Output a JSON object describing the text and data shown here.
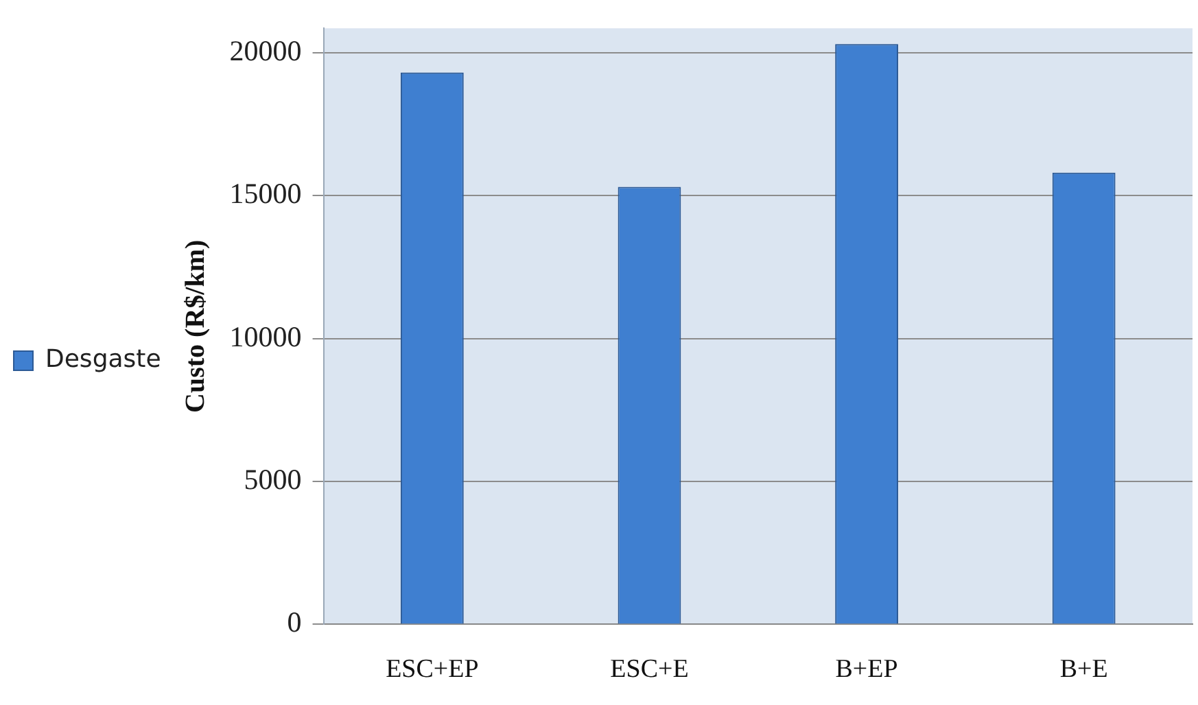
{
  "chart_data": {
    "type": "bar",
    "ylabel": "Custo (R$/km)",
    "categories": [
      "ESC+EP",
      "ESC+E",
      "B+EP",
      "B+E"
    ],
    "series": [
      {
        "name": "Desgaste",
        "color": "#3f7fd0",
        "values": [
          19300,
          15300,
          20300,
          15800
        ]
      }
    ],
    "ylim": [
      0,
      20850
    ],
    "yticks": [
      0,
      5000,
      10000,
      15000,
      20000
    ],
    "grid": "y",
    "legend": "left"
  }
}
